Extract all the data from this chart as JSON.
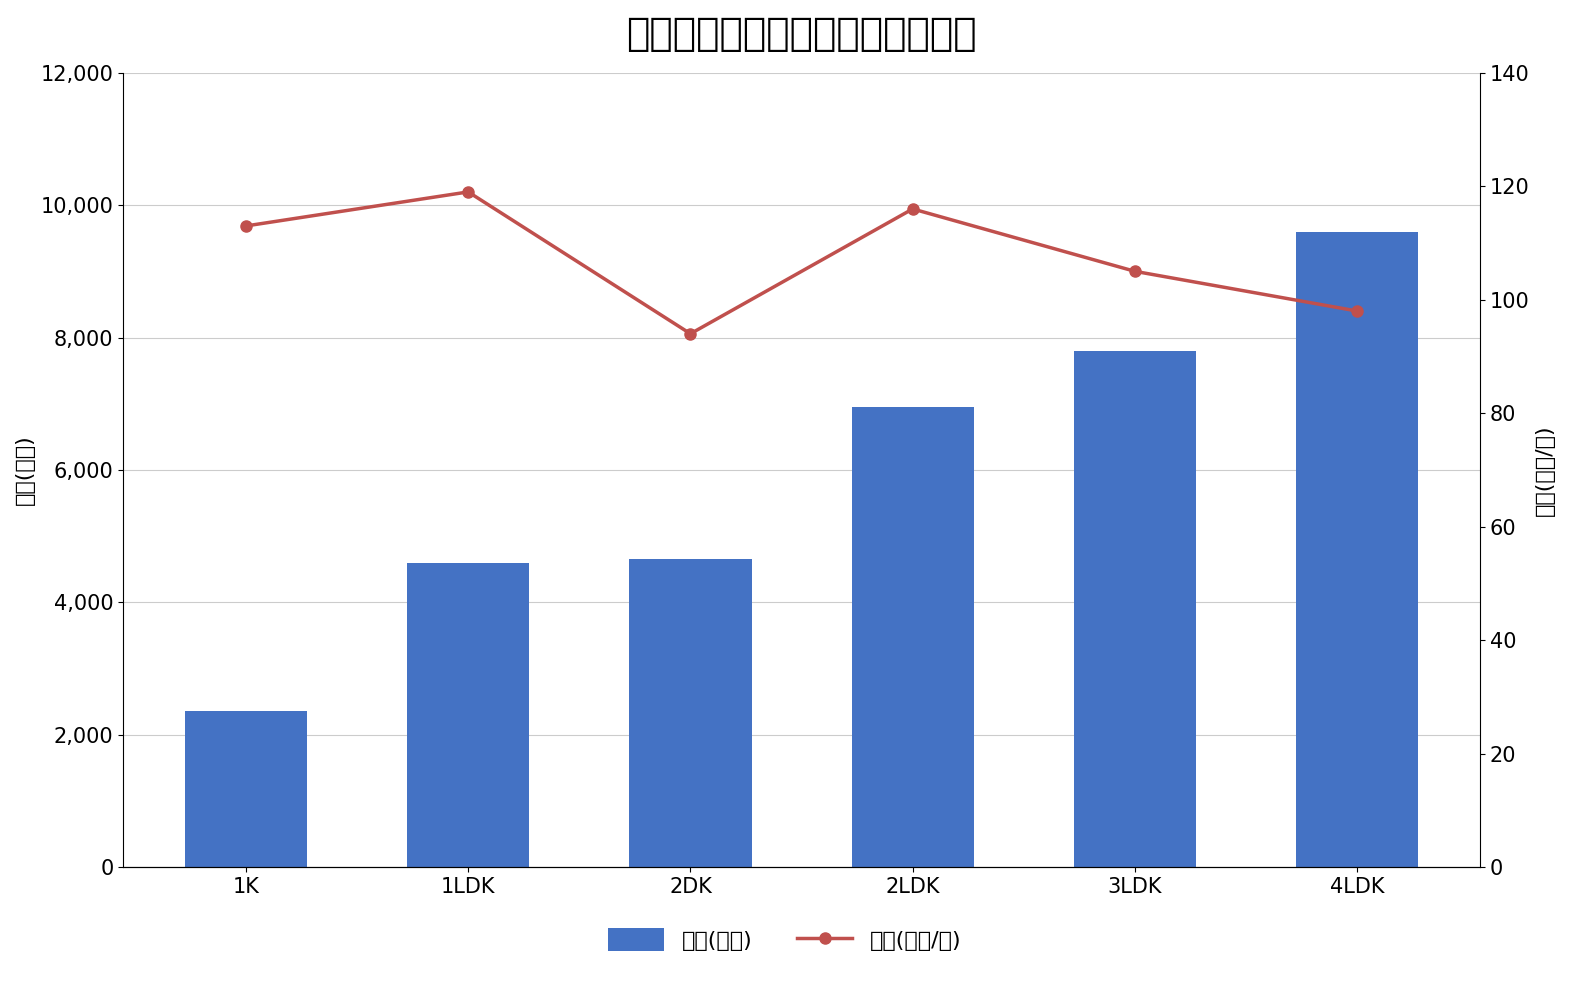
{
  "title": "新宿区の間取り別マンション価格",
  "categories": [
    "1K",
    "1LDK",
    "2DK",
    "2LDK",
    "3LDK",
    "4LDK"
  ],
  "bar_values": [
    2350,
    4600,
    4650,
    6950,
    7800,
    9600
  ],
  "line_values": [
    113,
    119,
    94,
    116,
    105,
    98
  ],
  "bar_color": "#4472C4",
  "line_color": "#C0504D",
  "ylabel_left": "価格(万円)",
  "ylabel_right": "単価(万円/㎡)",
  "ylim_left": [
    0,
    12000
  ],
  "ylim_right": [
    0,
    140
  ],
  "yticks_left": [
    0,
    2000,
    4000,
    6000,
    8000,
    10000,
    12000
  ],
  "yticks_right": [
    0,
    20,
    40,
    60,
    80,
    100,
    120,
    140
  ],
  "legend_bar": "価格(万円)",
  "legend_line": "単価(万円/㎡)",
  "title_fontsize": 28,
  "label_fontsize": 16,
  "tick_fontsize": 15,
  "legend_fontsize": 16,
  "background_color": "#ffffff",
  "grid_color": "#cccccc"
}
